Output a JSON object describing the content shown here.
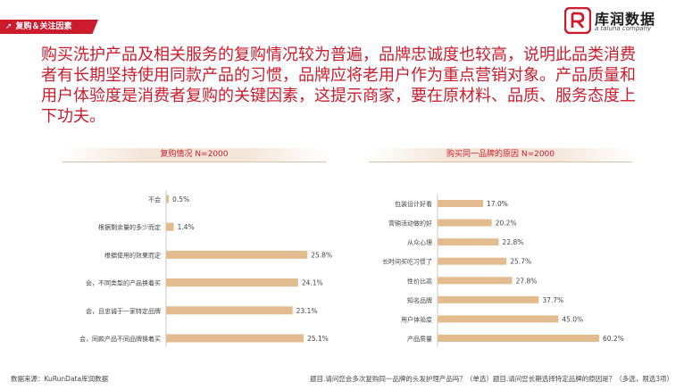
{
  "section_tag": "复购＆关注因素",
  "logo": {
    "name": "库润数据",
    "sub": "a taluna company"
  },
  "headline": "购买洗护产品及相关服务的复购情况较为普遍，品牌忠诚度也较高，说明此品类消费者有长期坚持使用同款产品的习惯，品牌应将老用户作为重点营销对象。产品质量和用户体验度是消费者复购的关键因素，这提示商家，要在原材料、品质、服务态度上下功夫。",
  "colors": {
    "bar": "#e2bc8e",
    "accent": "#cc1b2c"
  },
  "chart_data": [
    {
      "type": "bar",
      "orientation": "horizontal",
      "title": "复购情况 N=2000",
      "categories": [
        "不会",
        "根据剩余量的多少而定",
        "根据使用的效果而定",
        "会，不同类型的产品换着买",
        "会，且忠诚于一家特定品牌",
        "会，同款产品不同品牌换着买"
      ],
      "values": [
        0.5,
        1.4,
        25.8,
        24.1,
        23.1,
        25.1
      ],
      "labels": [
        "0.5%",
        "1.4%",
        "25.8%",
        "24.1%",
        "23.1%",
        "25.1%"
      ],
      "unit": "%",
      "xlim": [
        0,
        30
      ]
    },
    {
      "type": "bar",
      "orientation": "horizontal",
      "title": "购买同一品牌的原因 N=2000",
      "categories": [
        "包装设计好看",
        "营销活动做的好",
        "从众心理",
        "长时间买吃习惯了",
        "性价比高",
        "知名品牌",
        "用户体验度",
        "产品质量"
      ],
      "values": [
        17.0,
        20.2,
        22.8,
        25.7,
        27.8,
        37.7,
        45.0,
        60.2
      ],
      "labels": [
        "17.0%",
        "20.2%",
        "22.8%",
        "25.7%",
        "27.8%",
        "37.7%",
        "45.0%",
        "60.2%"
      ],
      "unit": "%",
      "xlim": [
        0,
        60.2
      ]
    }
  ],
  "footer": {
    "source": "数据来源：KuRunData库润数据",
    "note": "题目.请问您会多次复购同一品牌的头发护理产品吗？（单选）题目.请问您长期选择特定品牌的原因是？（多选，限选3项）"
  }
}
